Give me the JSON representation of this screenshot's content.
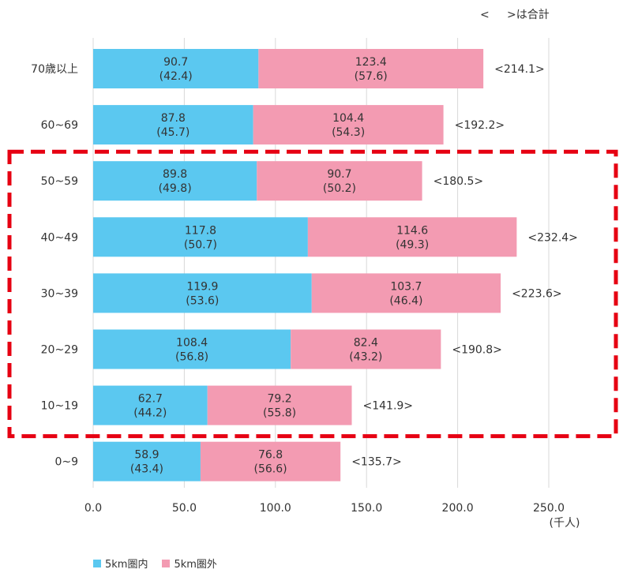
{
  "note": "<     >は合計",
  "legend": [
    {
      "name": "5km圏内",
      "color": "#5BC8F0"
    },
    {
      "name": "5km圏外",
      "color": "#F39BB2"
    }
  ],
  "colors": {
    "inside": "#5BC8F0",
    "outside": "#F39BB2",
    "highlight": "#E60012",
    "grid": "#D9D9D9"
  },
  "chart_data": {
    "type": "bar",
    "orientation": "horizontal",
    "stacked": true,
    "categories": [
      "70歳以上",
      "60~69",
      "50~59",
      "40~49",
      "30~39",
      "20~29",
      "10~19",
      "0~9"
    ],
    "series": [
      {
        "name": "5km圏内",
        "values": [
          90.7,
          87.8,
          89.8,
          117.8,
          119.9,
          108.4,
          62.7,
          58.9
        ],
        "percent_labels": [
          "(42.4)",
          "(45.7)",
          "(49.8)",
          "(50.7)",
          "(53.6)",
          "(56.8)",
          "(44.2)",
          "(43.4)"
        ]
      },
      {
        "name": "5km圏外",
        "values": [
          123.4,
          104.4,
          90.7,
          114.6,
          103.7,
          82.4,
          79.2,
          76.8
        ],
        "percent_labels": [
          "(57.6)",
          "(54.3)",
          "(50.2)",
          "(49.3)",
          "(46.4)",
          "(43.2)",
          "(55.8)",
          "(56.6)"
        ]
      }
    ],
    "totals": [
      "<214.1>",
      "<192.2>",
      "<180.5>",
      "<232.4>",
      "<223.6>",
      "<190.8>",
      "<141.9>",
      "<135.7>"
    ],
    "xticks": [
      "0.0",
      "50.0",
      "100.0",
      "150.0",
      "200.0",
      "250.0"
    ],
    "xlim": [
      0,
      250
    ],
    "unit": "(千人)",
    "grid": true,
    "highlighted_categories": [
      "50~59",
      "40~49",
      "30~39",
      "20~29",
      "10~19"
    ],
    "legend_position": "bottom-left"
  }
}
